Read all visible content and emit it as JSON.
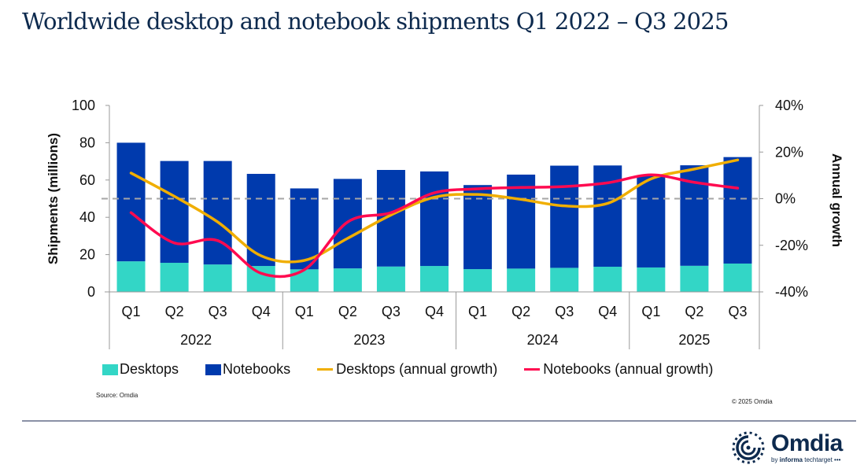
{
  "page": {
    "title": "Worldwide desktop and notebook shipments Q1 2022 – Q3 2025",
    "source": "Source: Omdia",
    "copyright": "© 2025 Omdia",
    "logo": {
      "name": "Omdia",
      "sub_prefix": "by ",
      "sub_bold": "informa",
      "sub_rest": " techtarget •••"
    }
  },
  "colors": {
    "desktops": "#33d6c6",
    "notebooks": "#003aad",
    "desktops_growth": "#f0ae00",
    "notebooks_growth": "#ff0a50",
    "title": "#0d2a4e",
    "axis": "#999999",
    "zero_line": "#a6a6a6"
  },
  "chart_data": {
    "type": "bar",
    "subtype": "stacked bar with dual-axis lines",
    "title": "Worldwide desktop and notebook shipments Q1 2022 – Q3 2025",
    "categories": [
      "Q1",
      "Q2",
      "Q3",
      "Q4",
      "Q1",
      "Q2",
      "Q3",
      "Q4",
      "Q1",
      "Q2",
      "Q3",
      "Q4",
      "Q1",
      "Q2",
      "Q3"
    ],
    "groups": [
      {
        "label": "2022",
        "count": 4
      },
      {
        "label": "2023",
        "count": 4
      },
      {
        "label": "2024",
        "count": 4
      },
      {
        "label": "2025",
        "count": 3
      }
    ],
    "ylabel": "Shipments (millions)",
    "y2label": "Annual growth",
    "ylim": [
      0,
      100
    ],
    "yticks": [
      0,
      20,
      40,
      60,
      80,
      100
    ],
    "y2lim": [
      -40,
      40
    ],
    "y2ticks": [
      "-40%",
      "-20%",
      "0%",
      "20%",
      "40%"
    ],
    "y2tick_values": [
      -40,
      -20,
      0,
      20,
      40
    ],
    "zero_growth_dashed_line": true,
    "series": [
      {
        "name": "Desktops",
        "type": "bar",
        "axis": "left",
        "values": [
          16.4,
          15.6,
          14.7,
          13.9,
          12.1,
          12.6,
          13.6,
          13.9,
          12.2,
          12.5,
          12.9,
          13.5,
          13.1,
          14.0,
          15.2
        ]
      },
      {
        "name": "Notebooks",
        "type": "bar",
        "axis": "left",
        "values": [
          63.6,
          54.6,
          55.5,
          49.4,
          43.4,
          48.0,
          51.8,
          50.7,
          45.1,
          50.4,
          54.8,
          54.3,
          49.5,
          53.9,
          57.1
        ]
      },
      {
        "name": "Desktops (annual growth)",
        "type": "line",
        "axis": "right",
        "values": [
          11.0,
          1.0,
          -10.0,
          -24.5,
          -26.5,
          -17.0,
          -7.0,
          0.6,
          1.8,
          -0.3,
          -3.1,
          -2.0,
          8.5,
          12.7,
          16.6
        ]
      },
      {
        "name": "Notebooks (annual growth)",
        "type": "line",
        "axis": "right",
        "values": [
          -6.0,
          -19.0,
          -18.0,
          -32.0,
          -30.5,
          -10.0,
          -6.0,
          2.5,
          4.2,
          4.8,
          5.2,
          6.8,
          10.2,
          7.0,
          4.5
        ]
      }
    ],
    "legend": {
      "position": "bottom",
      "entries": [
        "Desktops",
        "Notebooks",
        "Desktops (annual growth)",
        "Notebooks (annual growth)"
      ]
    },
    "grid": false
  }
}
